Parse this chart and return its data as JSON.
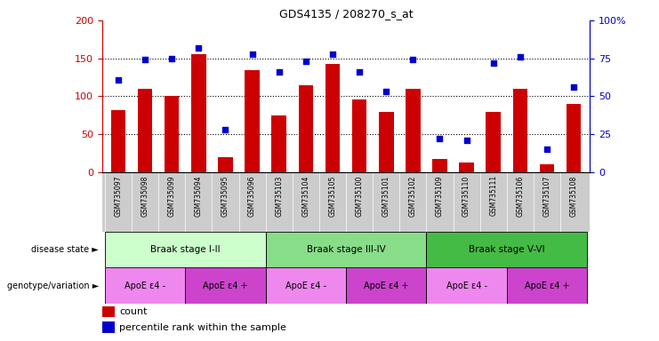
{
  "title": "GDS4135 / 208270_s_at",
  "samples": [
    "GSM735097",
    "GSM735098",
    "GSM735099",
    "GSM735094",
    "GSM735095",
    "GSM735096",
    "GSM735103",
    "GSM735104",
    "GSM735105",
    "GSM735100",
    "GSM735101",
    "GSM735102",
    "GSM735109",
    "GSM735110",
    "GSM735111",
    "GSM735106",
    "GSM735107",
    "GSM735108"
  ],
  "counts": [
    82,
    110,
    100,
    155,
    20,
    135,
    75,
    115,
    143,
    96,
    80,
    110,
    17,
    13,
    80,
    110,
    10,
    90
  ],
  "percentiles": [
    61,
    74,
    75,
    82,
    28,
    78,
    66,
    73,
    78,
    66,
    53,
    74,
    22,
    21,
    72,
    76,
    15,
    56
  ],
  "left_ylim": [
    0,
    200
  ],
  "right_ylim": [
    0,
    100
  ],
  "left_yticks": [
    0,
    50,
    100,
    150,
    200
  ],
  "right_yticks": [
    0,
    25,
    50,
    75,
    100
  ],
  "right_yticklabels": [
    "0",
    "25",
    "50",
    "75",
    "100%"
  ],
  "bar_color": "#cc0000",
  "dot_color": "#0000cc",
  "groups": [
    {
      "label": "Braak stage I-II",
      "start": 0,
      "end": 6,
      "color": "#ccffcc"
    },
    {
      "label": "Braak stage III-IV",
      "start": 6,
      "end": 12,
      "color": "#88dd88"
    },
    {
      "label": "Braak stage V-VI",
      "start": 12,
      "end": 18,
      "color": "#44bb44"
    }
  ],
  "geno_groups": [
    {
      "label": "ApoE ε4 -",
      "start": 0,
      "end": 3,
      "color": "#ee88ee"
    },
    {
      "label": "ApoE ε4 +",
      "start": 3,
      "end": 6,
      "color": "#cc44cc"
    },
    {
      "label": "ApoE ε4 -",
      "start": 6,
      "end": 9,
      "color": "#ee88ee"
    },
    {
      "label": "ApoE ε4 +",
      "start": 9,
      "end": 12,
      "color": "#cc44cc"
    },
    {
      "label": "ApoE ε4 -",
      "start": 12,
      "end": 15,
      "color": "#ee88ee"
    },
    {
      "label": "ApoE ε4 +",
      "start": 15,
      "end": 18,
      "color": "#cc44cc"
    }
  ],
  "xtick_bg": "#cccccc",
  "disease_state_label": "disease state",
  "genotype_label": "genotype/variation"
}
